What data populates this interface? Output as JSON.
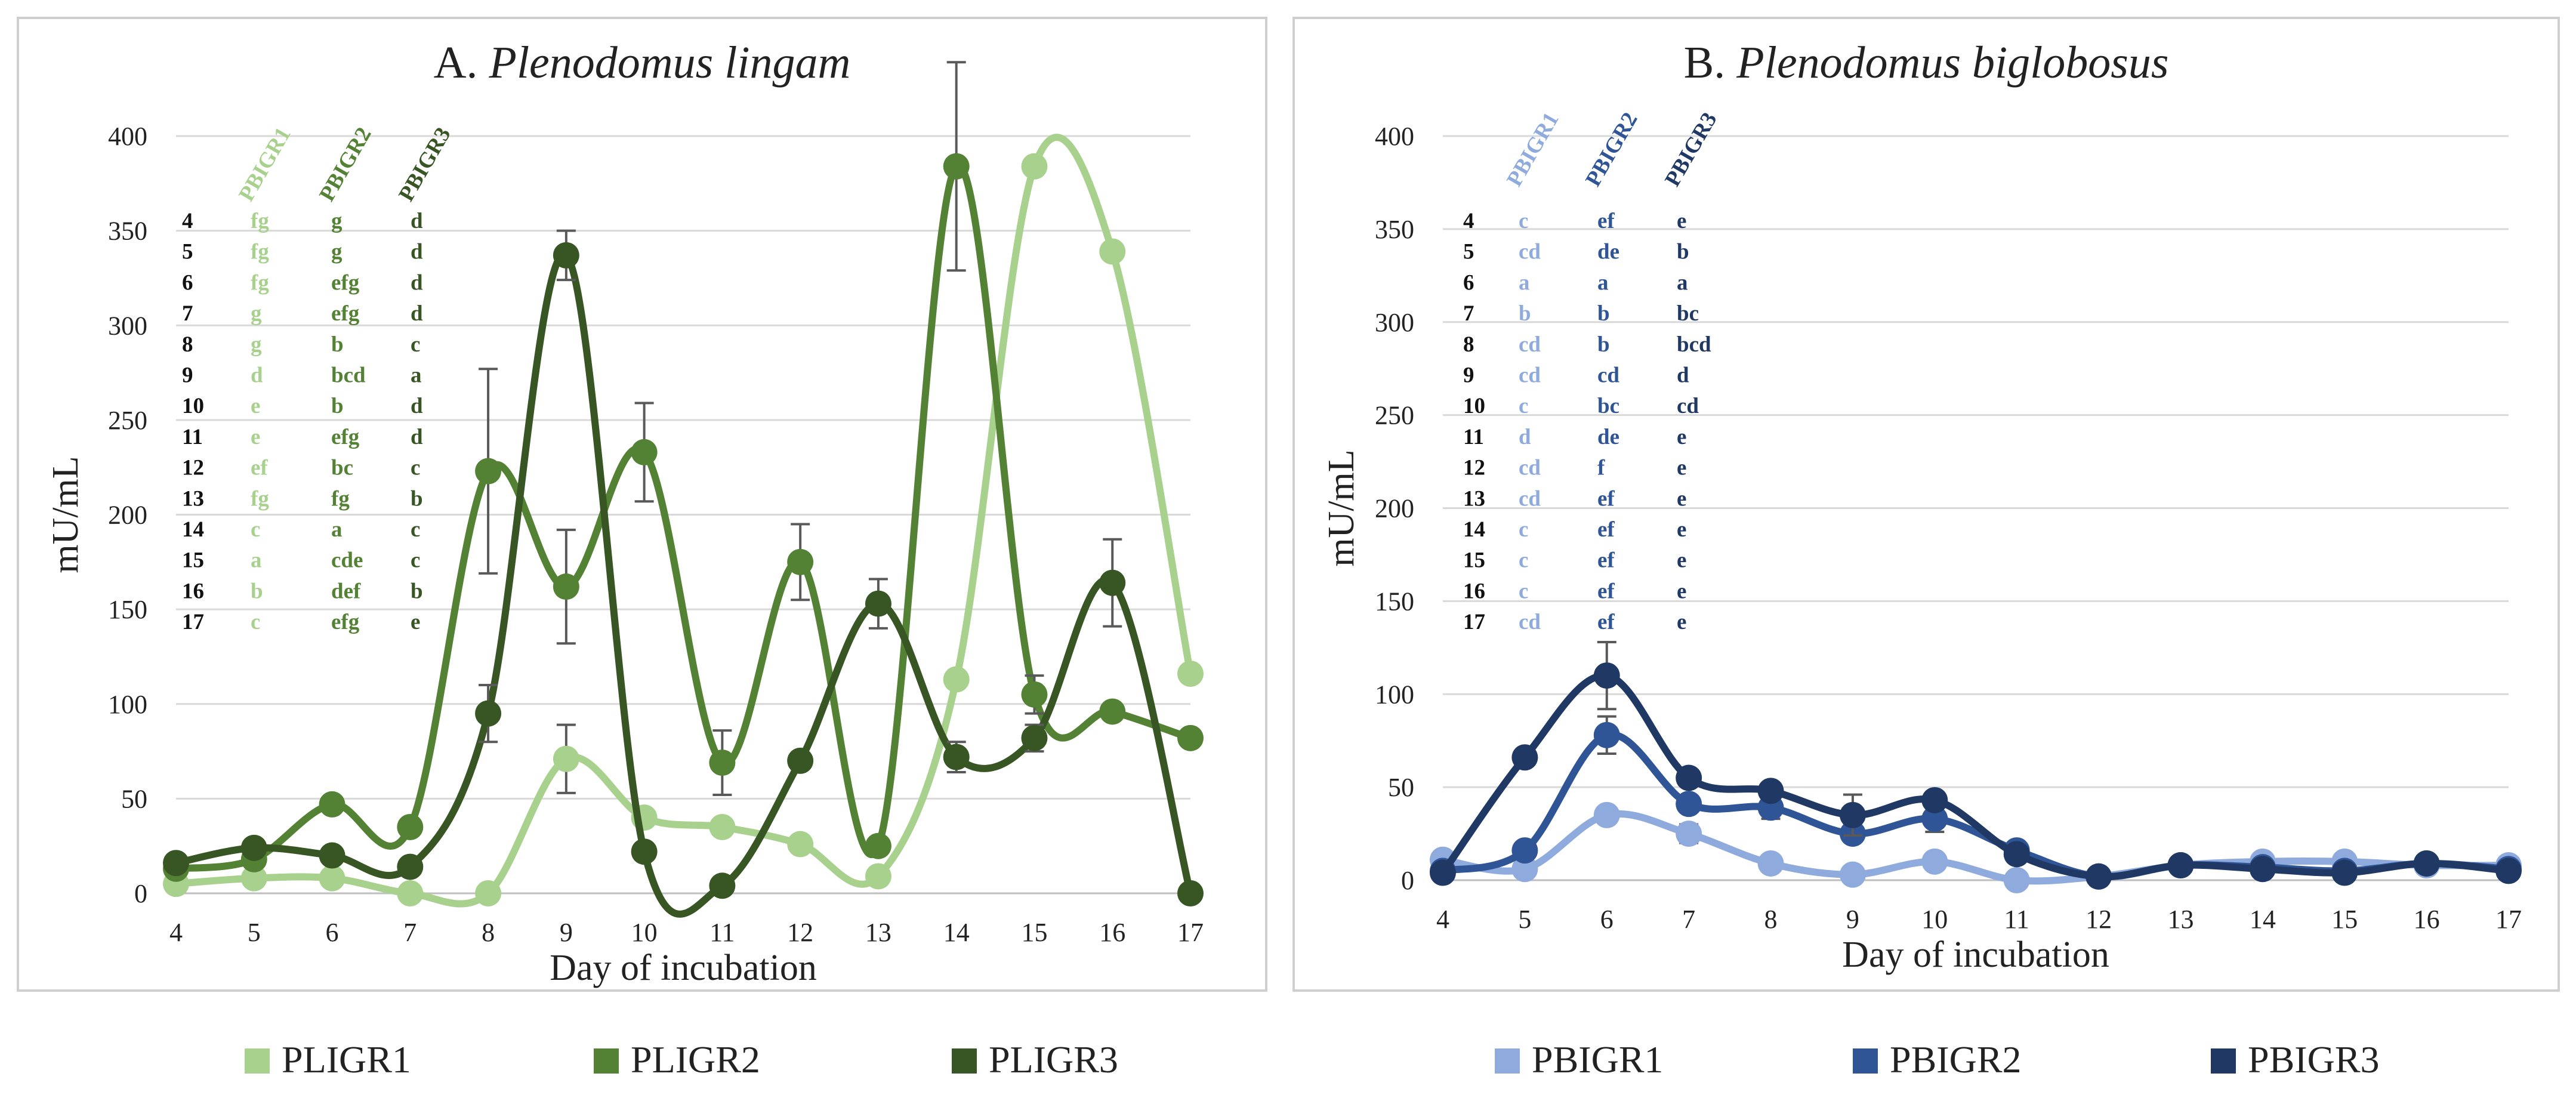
{
  "chart_data": [
    {
      "type": "line",
      "panel_label": "A.",
      "title": "Plenodomus lingam",
      "xlabel": "Day of incubation",
      "ylabel": "mU/mL",
      "x": [
        4,
        5,
        6,
        7,
        8,
        9,
        10,
        11,
        12,
        13,
        14,
        15,
        16,
        17
      ],
      "ylim": [
        0,
        400
      ],
      "yticks": [
        0,
        50,
        100,
        150,
        200,
        250,
        300,
        350,
        400
      ],
      "grid": true,
      "legend_position": "bottom",
      "series": [
        {
          "name": "PLIGR1",
          "color": "#a9d18e",
          "values": [
            5,
            8,
            8,
            0,
            0,
            71,
            40,
            35,
            26,
            9,
            113,
            384,
            339,
            116
          ],
          "errors": [
            0,
            0,
            0,
            0,
            0,
            18,
            0,
            0,
            0,
            0,
            0,
            0,
            0,
            0
          ]
        },
        {
          "name": "PLIGR2",
          "color": "#548235",
          "values": [
            13,
            18,
            47,
            35,
            223,
            162,
            233,
            69,
            175,
            25,
            384,
            105,
            96,
            82
          ],
          "errors": [
            0,
            0,
            0,
            0,
            54,
            30,
            26,
            17,
            20,
            0,
            55,
            10,
            0,
            0
          ]
        },
        {
          "name": "PLIGR3",
          "color": "#375623",
          "values": [
            16,
            24,
            20,
            14,
            95,
            337,
            22,
            4,
            70,
            153,
            72,
            82,
            164,
            0
          ],
          "errors": [
            0,
            0,
            0,
            0,
            15,
            13,
            0,
            0,
            0,
            13,
            8,
            7,
            23,
            0
          ]
        }
      ],
      "letters": {
        "headers": [
          "PBIGR1",
          "PBIGR2",
          "PBIGR3"
        ],
        "days": [
          "4",
          "5",
          "6",
          "7",
          "8",
          "9",
          "10",
          "11",
          "12",
          "13",
          "14",
          "15",
          "16",
          "17"
        ],
        "columns": [
          [
            "fg",
            "fg",
            "fg",
            "g",
            "g",
            "d",
            "e",
            "e",
            "ef",
            "fg",
            "c",
            "a",
            "b",
            "c"
          ],
          [
            "g",
            "g",
            "efg",
            "efg",
            "b",
            "bcd",
            "b",
            "efg",
            "bc",
            "fg",
            "a",
            "cde",
            "def",
            "efg"
          ],
          [
            "d",
            "d",
            "d",
            "d",
            "c",
            "a",
            "d",
            "d",
            "c",
            "b",
            "c",
            "c",
            "b",
            "e"
          ]
        ]
      }
    },
    {
      "type": "line",
      "panel_label": "B.",
      "title": "Plenodomus biglobosus",
      "xlabel": "Day of incubation",
      "ylabel": "mU/mL",
      "x": [
        4,
        5,
        6,
        7,
        8,
        9,
        10,
        11,
        12,
        13,
        14,
        15,
        16,
        17
      ],
      "ylim": [
        0,
        400
      ],
      "yticks": [
        0,
        50,
        100,
        150,
        200,
        250,
        300,
        350,
        400
      ],
      "grid": true,
      "legend_position": "bottom",
      "series": [
        {
          "name": "PBIGR1",
          "color": "#8faadc",
          "values": [
            11,
            6,
            35,
            25,
            9,
            3,
            10,
            0,
            2,
            8,
            10,
            10,
            8,
            8
          ],
          "errors": [
            0,
            0,
            0,
            5,
            0,
            0,
            0,
            0,
            0,
            0,
            0,
            0,
            0,
            0
          ]
        },
        {
          "name": "PBIGR2",
          "color": "#2f5597",
          "values": [
            5,
            16,
            78,
            41,
            39,
            25,
            33,
            16,
            2,
            8,
            7,
            5,
            9,
            6
          ],
          "errors": [
            0,
            0,
            10,
            0,
            6,
            0,
            7,
            0,
            0,
            0,
            0,
            0,
            0,
            0
          ]
        },
        {
          "name": "PBIGR3",
          "color": "#203864",
          "values": [
            4,
            66,
            110,
            55,
            48,
            35,
            43,
            14,
            2,
            8,
            6,
            4,
            9,
            5
          ],
          "errors": [
            0,
            0,
            18,
            0,
            0,
            11,
            0,
            0,
            0,
            0,
            0,
            0,
            0,
            0
          ]
        }
      ],
      "letters": {
        "headers": [
          "PBIGR1",
          "PBIGR2",
          "PBIGR3"
        ],
        "days": [
          "4",
          "5",
          "6",
          "7",
          "8",
          "9",
          "10",
          "11",
          "12",
          "13",
          "14",
          "15",
          "16",
          "17"
        ],
        "columns": [
          [
            "c",
            "cd",
            "a",
            "b",
            "cd",
            "cd",
            "c",
            "d",
            "cd",
            "cd",
            "c",
            "c",
            "c",
            "cd"
          ],
          [
            "ef",
            "de",
            "a",
            "b",
            "b",
            "cd",
            "bc",
            "de",
            "f",
            "ef",
            "ef",
            "ef",
            "ef",
            "ef"
          ],
          [
            "e",
            "b",
            "a",
            "bc",
            "bcd",
            "d",
            "cd",
            "e",
            "e",
            "e",
            "e",
            "e",
            "e",
            "e"
          ]
        ]
      }
    }
  ]
}
